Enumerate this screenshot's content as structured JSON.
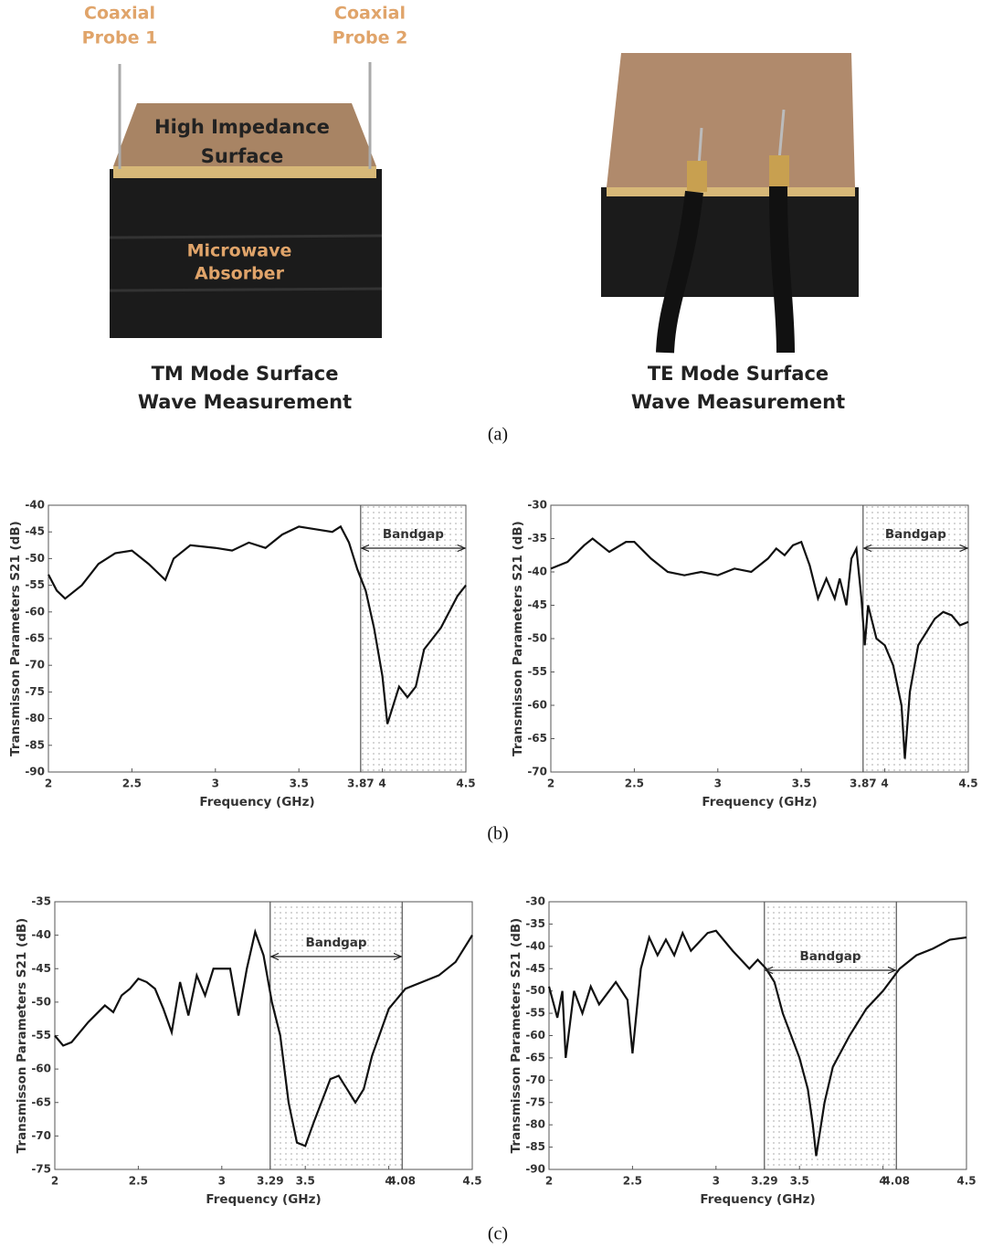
{
  "photos": {
    "probe1": [
      "Coaxial",
      "Probe 1"
    ],
    "probe2": [
      "Coaxial",
      "Probe 2"
    ],
    "surface": [
      "High Impedance",
      "Surface"
    ],
    "absorber": [
      "Microwave",
      "Absorber"
    ],
    "tm_caption": [
      "TM Mode Surface",
      "Wave Measurement"
    ],
    "te_caption": [
      "TE Mode Surface",
      "Wave Measurement"
    ]
  },
  "figure": {
    "captions": [
      "(a)",
      "(b)",
      "(c)"
    ]
  },
  "chart_data": [
    {
      "type": "line",
      "x_label": "Frequency (GHz)",
      "y_label": "Transmisson Parameters S21 (dB)",
      "annotation": "Bandgap",
      "bandgap": [
        3.87,
        4.5
      ],
      "color": "#111111",
      "xlim": [
        2,
        4.5
      ],
      "xticks": [
        2,
        2.5,
        3,
        3.5,
        3.87,
        4,
        4.5
      ],
      "ylim": [
        -90,
        -40
      ],
      "yticks": [
        -90,
        -85,
        -80,
        -75,
        -70,
        -65,
        -60,
        -55,
        -50,
        -45,
        -40
      ],
      "x": [
        2,
        2.05,
        2.1,
        2.2,
        2.3,
        2.4,
        2.5,
        2.6,
        2.7,
        2.75,
        2.85,
        3.0,
        3.1,
        3.2,
        3.3,
        3.4,
        3.5,
        3.6,
        3.7,
        3.75,
        3.8,
        3.85,
        3.9,
        3.95,
        4.0,
        4.03,
        4.06,
        4.1,
        4.15,
        4.2,
        4.25,
        4.3,
        4.35,
        4.4,
        4.45,
        4.5
      ],
      "values": [
        -53,
        -56,
        -57.5,
        -55,
        -51,
        -49,
        -48.5,
        -51,
        -54,
        -50,
        -47.5,
        -48,
        -48.5,
        -47,
        -48,
        -45.5,
        -44,
        -44.5,
        -45,
        -44,
        -47,
        -52,
        -56,
        -63,
        -72,
        -81,
        -78,
        -74,
        -76,
        -74,
        -67,
        -65,
        -63,
        -60,
        -57,
        -55
      ]
    },
    {
      "type": "line",
      "x_label": "Frequency (GHz)",
      "y_label": "Transmisson Parameters S21 (dB)",
      "annotation": "Bandgap",
      "bandgap": [
        3.87,
        4.5
      ],
      "color": "#111111",
      "xlim": [
        2,
        4.5
      ],
      "xticks": [
        2,
        2.5,
        3,
        3.5,
        3.87,
        4,
        4.5
      ],
      "ylim": [
        -70,
        -30
      ],
      "yticks": [
        -70,
        -65,
        -60,
        -55,
        -50,
        -45,
        -40,
        -35,
        -30
      ],
      "x": [
        2,
        2.1,
        2.2,
        2.25,
        2.35,
        2.45,
        2.5,
        2.6,
        2.7,
        2.8,
        2.9,
        3.0,
        3.1,
        3.2,
        3.3,
        3.35,
        3.4,
        3.45,
        3.5,
        3.55,
        3.6,
        3.65,
        3.7,
        3.73,
        3.77,
        3.8,
        3.83,
        3.86,
        3.88,
        3.9,
        3.95,
        4.0,
        4.05,
        4.1,
        4.12,
        4.15,
        4.2,
        4.3,
        4.35,
        4.4,
        4.45,
        4.5
      ],
      "values": [
        -39.5,
        -38.5,
        -36,
        -35,
        -37,
        -35.5,
        -35.5,
        -38,
        -40,
        -40.5,
        -40,
        -40.5,
        -39.5,
        -40,
        -38,
        -36.5,
        -37.5,
        -36,
        -35.5,
        -39,
        -44,
        -41,
        -44,
        -41,
        -45,
        -38,
        -36.5,
        -44,
        -51,
        -45,
        -50,
        -51,
        -54,
        -60,
        -68,
        -58,
        -51,
        -47,
        -46,
        -46.5,
        -48,
        -47.5
      ]
    },
    {
      "type": "line",
      "x_label": "Frequency (GHz)",
      "y_label": "Transmisson Parameters S21 (dB)",
      "annotation": "Bandgap",
      "bandgap": [
        3.29,
        4.08
      ],
      "color": "#111111",
      "xlim": [
        2,
        4.5
      ],
      "xticks": [
        2,
        2.5,
        3,
        3.29,
        3.5,
        4,
        4.08,
        4.5
      ],
      "ylim": [
        -75,
        -35
      ],
      "yticks": [
        -75,
        -70,
        -65,
        -60,
        -55,
        -50,
        -45,
        -40,
        -35
      ],
      "x": [
        2,
        2.05,
        2.1,
        2.2,
        2.3,
        2.35,
        2.4,
        2.45,
        2.5,
        2.55,
        2.6,
        2.65,
        2.7,
        2.73,
        2.75,
        2.8,
        2.85,
        2.9,
        2.95,
        3.05,
        3.1,
        3.15,
        3.2,
        3.25,
        3.3,
        3.35,
        3.4,
        3.45,
        3.5,
        3.55,
        3.65,
        3.7,
        3.75,
        3.8,
        3.85,
        3.9,
        4.0,
        4.1,
        4.2,
        4.3,
        4.4,
        4.5
      ],
      "values": [
        -55,
        -56.5,
        -56,
        -53,
        -50.5,
        -51.5,
        -49,
        -48,
        -46.5,
        -47,
        -48,
        -51,
        -54.5,
        -50,
        -47,
        -52,
        -46,
        -49,
        -45,
        -45,
        -52,
        -45,
        -39.5,
        -43,
        -50,
        -55,
        -65,
        -71,
        -71.5,
        -68,
        -61.5,
        -61,
        -63,
        -65,
        -63,
        -58,
        -51,
        -48,
        -47,
        -46,
        -44,
        -40
      ]
    },
    {
      "type": "line",
      "x_label": "Frequency (GHz)",
      "y_label": "Transmisson Parameters S21 (dB)",
      "annotation": "Bandgap",
      "bandgap": [
        3.29,
        4.08
      ],
      "color": "#111111",
      "xlim": [
        2,
        4.5
      ],
      "xticks": [
        2,
        2.5,
        3,
        3.29,
        3.5,
        4,
        4.08,
        4.5
      ],
      "ylim": [
        -90,
        -30
      ],
      "yticks": [
        -90,
        -85,
        -80,
        -75,
        -70,
        -65,
        -60,
        -55,
        -50,
        -45,
        -40,
        -35,
        -30
      ],
      "x": [
        2,
        2.05,
        2.08,
        2.1,
        2.15,
        2.2,
        2.25,
        2.3,
        2.4,
        2.47,
        2.5,
        2.55,
        2.6,
        2.65,
        2.7,
        2.75,
        2.8,
        2.85,
        2.95,
        3.0,
        3.1,
        3.2,
        3.25,
        3.3,
        3.35,
        3.4,
        3.5,
        3.55,
        3.58,
        3.6,
        3.65,
        3.7,
        3.8,
        3.9,
        4.0,
        4.1,
        4.2,
        4.3,
        4.4,
        4.5
      ],
      "values": [
        -49,
        -56,
        -50,
        -65,
        -50,
        -55,
        -49,
        -53,
        -48,
        -52,
        -64,
        -45,
        -38,
        -42,
        -38.5,
        -42,
        -37,
        -41,
        -37,
        -36.5,
        -41,
        -45,
        -43,
        -45,
        -48,
        -55,
        -65,
        -72,
        -80,
        -87,
        -75,
        -67,
        -60,
        -54,
        -50,
        -45,
        -42,
        -40.5,
        -38.5,
        -38
      ]
    }
  ]
}
